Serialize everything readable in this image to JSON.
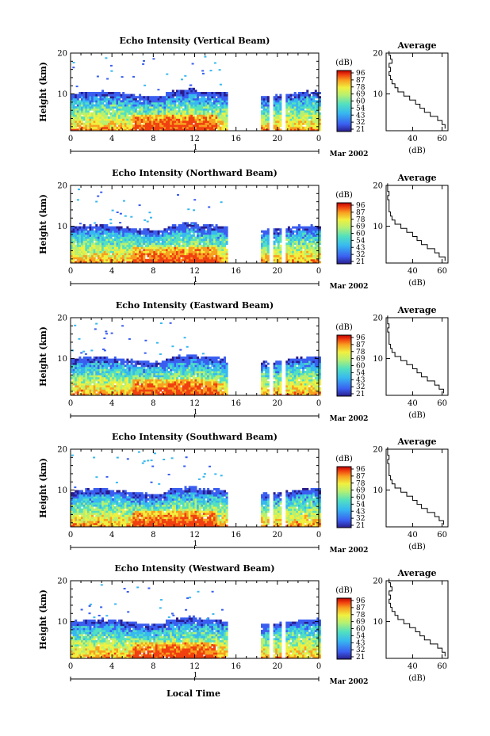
{
  "chart_data": [
    {
      "type": "heatmap",
      "title": "Echo Intensity (Vertical Beam)",
      "ylabel": "Height (km)",
      "xticks": [
        "0",
        "4",
        "8",
        "12",
        "16",
        "20",
        "0"
      ],
      "yticks": [
        "10",
        "20"
      ],
      "xlim": [
        0,
        24
      ],
      "ylim": [
        1,
        20
      ],
      "day_label": "1",
      "month_label": "Mar 2002",
      "colorbar": {
        "unit": "(dB)",
        "ticks": [
          "96",
          "87",
          "78",
          "69",
          "60",
          "54",
          "43",
          "32",
          "21"
        ]
      },
      "gap_hours": [
        [
          15,
          18.2
        ]
      ],
      "echo_top_km": 9.8,
      "profile": {
        "title": "Average",
        "xlabel": "(dB)",
        "xticks": [
          "40",
          "60"
        ],
        "yticks": [
          "10",
          "20"
        ],
        "xlim": [
          22,
          64
        ],
        "ylim": [
          1,
          20
        ],
        "height_km": [
          2,
          3,
          4,
          5,
          6,
          7,
          8,
          9,
          10,
          11,
          12,
          13,
          14,
          15,
          16,
          17,
          18,
          19,
          20
        ],
        "db": [
          62,
          60,
          57,
          52,
          48,
          45,
          42,
          38,
          34,
          30,
          28,
          26,
          25,
          24,
          25,
          24,
          26,
          25,
          24
        ]
      }
    },
    {
      "type": "heatmap",
      "title": "Echo Intensity (Northward Beam)",
      "ylabel": "Height (km)",
      "xticks": [
        "0",
        "4",
        "8",
        "12",
        "16",
        "20",
        "0"
      ],
      "yticks": [
        "10",
        "20"
      ],
      "xlim": [
        0,
        24
      ],
      "ylim": [
        1,
        20
      ],
      "day_label": "1",
      "month_label": "Mar 2002",
      "colorbar": {
        "unit": "(dB)",
        "ticks": [
          "96",
          "87",
          "78",
          "69",
          "60",
          "54",
          "43",
          "32",
          "21"
        ]
      },
      "gap_hours": [
        [
          15,
          18.2
        ]
      ],
      "echo_top_km": 9.5,
      "profile": {
        "title": "Average",
        "xlabel": "(dB)",
        "xticks": [
          "40",
          "60"
        ],
        "yticks": [
          "10",
          "20"
        ],
        "xlim": [
          22,
          64
        ],
        "ylim": [
          1,
          20
        ],
        "height_km": [
          2,
          3,
          4,
          5,
          6,
          7,
          8,
          9,
          10,
          11,
          12,
          13,
          14,
          15,
          16,
          17,
          18,
          19,
          20
        ],
        "db": [
          62,
          58,
          55,
          50,
          46,
          43,
          40,
          36,
          32,
          28,
          26,
          25,
          24,
          24,
          24,
          23,
          24,
          23,
          23
        ]
      }
    },
    {
      "type": "heatmap",
      "title": "Echo Intensity (Eastward Beam)",
      "ylabel": "Height (km)",
      "xticks": [
        "0",
        "4",
        "8",
        "12",
        "16",
        "20",
        "0"
      ],
      "yticks": [
        "10",
        "20"
      ],
      "xlim": [
        0,
        24
      ],
      "ylim": [
        1,
        20
      ],
      "day_label": "1",
      "month_label": "Mar 2002",
      "colorbar": {
        "unit": "(dB)",
        "ticks": [
          "96",
          "87",
          "78",
          "69",
          "60",
          "54",
          "43",
          "32",
          "21"
        ]
      },
      "gap_hours": [
        [
          15,
          18.2
        ]
      ],
      "echo_top_km": 9.6,
      "profile": {
        "title": "Average",
        "xlabel": "(dB)",
        "xticks": [
          "40",
          "60"
        ],
        "yticks": [
          "10",
          "20"
        ],
        "xlim": [
          22,
          64
        ],
        "ylim": [
          1,
          20
        ],
        "height_km": [
          2,
          3,
          4,
          5,
          6,
          7,
          8,
          9,
          10,
          11,
          12,
          13,
          14,
          15,
          16,
          17,
          18,
          19,
          20
        ],
        "db": [
          61,
          58,
          55,
          50,
          46,
          43,
          40,
          36,
          32,
          28,
          26,
          25,
          24,
          24,
          24,
          23,
          24,
          23,
          23
        ]
      }
    },
    {
      "type": "heatmap",
      "title": "Echo Intensity (Southward Beam)",
      "ylabel": "Height (km)",
      "xticks": [
        "0",
        "4",
        "8",
        "12",
        "16",
        "20",
        "0"
      ],
      "yticks": [
        "10",
        "20"
      ],
      "xlim": [
        0,
        24
      ],
      "ylim": [
        1,
        20
      ],
      "day_label": "1",
      "month_label": "Mar 2002",
      "colorbar": {
        "unit": "(dB)",
        "ticks": [
          "96",
          "87",
          "78",
          "69",
          "60",
          "54",
          "43",
          "32",
          "21"
        ]
      },
      "gap_hours": [
        [
          15,
          18.2
        ]
      ],
      "echo_top_km": 9.5,
      "profile": {
        "title": "Average",
        "xlabel": "(dB)",
        "xticks": [
          "40",
          "60"
        ],
        "yticks": [
          "10",
          "20"
        ],
        "xlim": [
          22,
          64
        ],
        "ylim": [
          1,
          20
        ],
        "height_km": [
          2,
          3,
          4,
          5,
          6,
          7,
          8,
          9,
          10,
          11,
          12,
          13,
          14,
          15,
          16,
          17,
          18,
          19,
          20
        ],
        "db": [
          61,
          58,
          55,
          50,
          46,
          43,
          40,
          36,
          32,
          28,
          26,
          25,
          24,
          24,
          24,
          23,
          24,
          23,
          23
        ]
      }
    },
    {
      "type": "heatmap",
      "title": "Echo Intensity (Westward Beam)",
      "ylabel": "Height (km)",
      "xticks": [
        "0",
        "4",
        "8",
        "12",
        "16",
        "20",
        "0"
      ],
      "yticks": [
        "10",
        "20"
      ],
      "xlim": [
        0,
        24
      ],
      "ylim": [
        1,
        20
      ],
      "day_label": "1",
      "month_label": "Mar 2002",
      "colorbar": {
        "unit": "(dB)",
        "ticks": [
          "96",
          "87",
          "78",
          "69",
          "60",
          "54",
          "43",
          "32",
          "21"
        ]
      },
      "gap_hours": [
        [
          15,
          18.2
        ]
      ],
      "echo_top_km": 9.8,
      "profile": {
        "title": "Average",
        "xlabel": "(dB)",
        "xticks": [
          "40",
          "60"
        ],
        "yticks": [
          "10",
          "20"
        ],
        "xlim": [
          22,
          64
        ],
        "ylim": [
          1,
          20
        ],
        "height_km": [
          2,
          3,
          4,
          5,
          6,
          7,
          8,
          9,
          10,
          11,
          12,
          13,
          14,
          15,
          16,
          17,
          18,
          19,
          20
        ],
        "db": [
          62,
          60,
          57,
          52,
          48,
          45,
          42,
          38,
          34,
          30,
          28,
          26,
          25,
          24,
          25,
          24,
          26,
          25,
          24
        ]
      }
    }
  ],
  "xlabel": "Local Time",
  "colors": {
    "colormap": [
      "#2a1d8c",
      "#3a5ef0",
      "#37b8f0",
      "#52e0c0",
      "#b8f070",
      "#f0f040",
      "#f8a020",
      "#f04010",
      "#c00000"
    ]
  }
}
